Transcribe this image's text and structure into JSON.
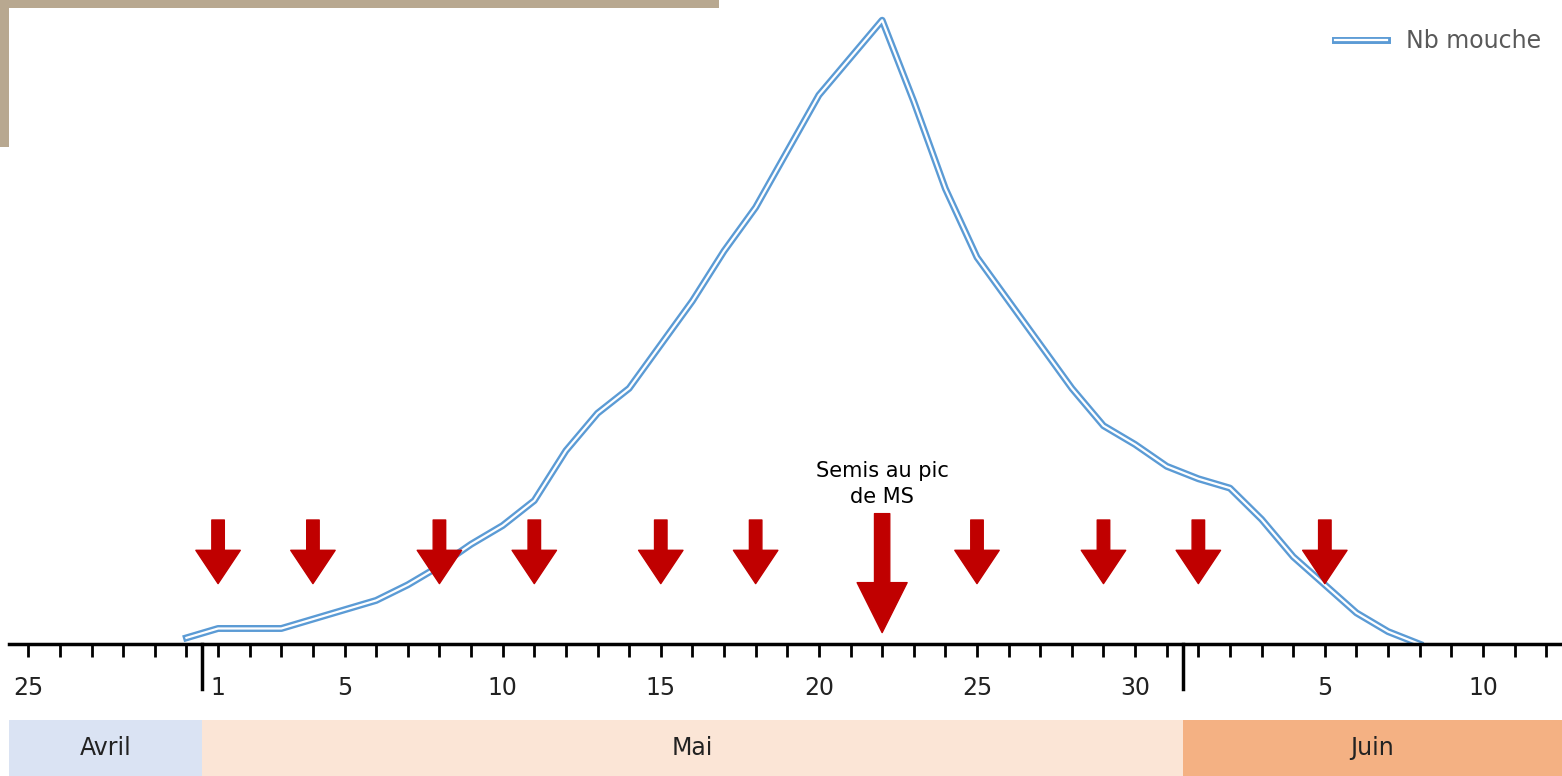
{
  "chart_data": {
    "type": "line",
    "categories": [
      "25",
      null,
      null,
      null,
      null,
      null,
      "1",
      null,
      null,
      null,
      "5",
      null,
      null,
      null,
      null,
      "10",
      null,
      null,
      null,
      null,
      "15",
      null,
      null,
      null,
      null,
      "20",
      null,
      null,
      null,
      null,
      "25",
      null,
      null,
      null,
      null,
      "30",
      null,
      null,
      null,
      null,
      null,
      "5",
      null,
      null,
      null,
      null,
      "10",
      null,
      null
    ],
    "series": [
      {
        "name": "Nb mouche",
        "color": "#5b9bd5",
        "line_style": "double",
        "values": [
          null,
          null,
          null,
          null,
          null,
          1,
          2.5,
          2.5,
          2.5,
          4,
          5.5,
          7,
          9.5,
          12.5,
          16,
          19,
          23,
          31,
          37,
          41,
          48,
          55,
          63,
          70,
          79,
          88,
          94,
          100,
          87,
          73,
          62,
          55,
          48,
          41,
          35,
          32,
          28.5,
          26.5,
          25,
          20,
          14,
          9.5,
          5,
          2,
          0,
          null,
          null,
          null,
          null
        ]
      }
    ],
    "ylim": [
      0,
      102
    ],
    "yticks": [],
    "tick_labels": "x",
    "legend": "upper right",
    "arrows": {
      "color": "#c00000",
      "positions": [
        6,
        9,
        13,
        16,
        20,
        23,
        30,
        34,
        37,
        41
      ]
    },
    "main_arrow": {
      "position": 27,
      "text": "Semis au pic\nde MS",
      "color": "#c00000"
    },
    "months": [
      {
        "label": "Avril",
        "start": 0,
        "end": 5,
        "color": "#dae3f3"
      },
      {
        "label": "Mai",
        "start": 6,
        "end": 36,
        "color": "#fbe5d6"
      },
      {
        "label": "Juin",
        "start": 37,
        "end": 48,
        "color": "#f4b183"
      }
    ]
  }
}
